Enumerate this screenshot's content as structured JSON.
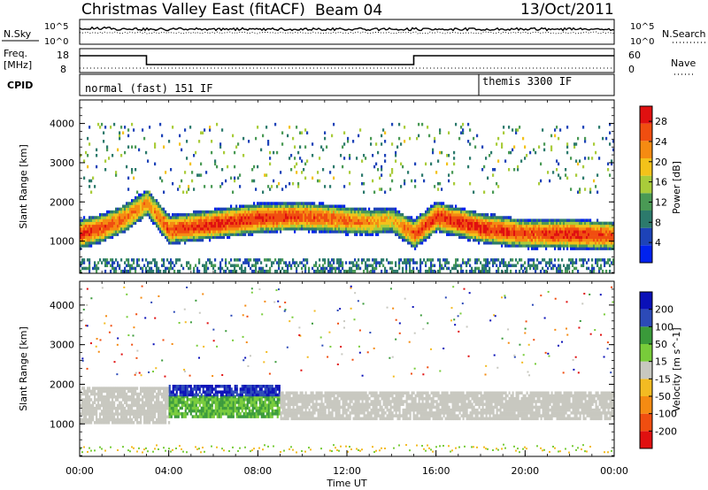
{
  "header": {
    "title": "Christmas Valley East (fitACF)",
    "beam": "Beam 04",
    "date": "13/Oct/2011"
  },
  "panels": {
    "nsky": {
      "label": "N.Sky",
      "ticks": [
        "10^5",
        "10^0"
      ],
      "right_label": "N.Search",
      "right_ticks": [
        "10^5",
        "10^0"
      ]
    },
    "freq": {
      "label_line1": "Freq.",
      "label_line2": "[MHz]",
      "ticks": [
        "18",
        "8"
      ],
      "right_label": "Nave",
      "right_ticks": [
        "60",
        "0"
      ]
    },
    "cpid": {
      "label": "CPID",
      "modes": [
        {
          "text": "normal (fast) 151 IF",
          "start_hour": 0
        },
        {
          "text": "themis 3300 IF",
          "start_hour": 18
        }
      ]
    }
  },
  "colors": {
    "power_scale": [
      "#0022ee",
      "#1d43b8",
      "#2c7a6c",
      "#4a9a55",
      "#a9cc3a",
      "#f3c21a",
      "#f58b12",
      "#f04e10",
      "#e01010"
    ],
    "velocity_scale": [
      "#e01010",
      "#f04e10",
      "#f58b12",
      "#f3bb22",
      "#c8c8c0",
      "#78cc3a",
      "#3a9a3a",
      "#2c4ab8",
      "#0a10b8"
    ]
  },
  "chart_data": [
    {
      "type": "heatmap",
      "name": "power",
      "ylabel": "Slant Range [km]",
      "yticks": [
        1000,
        2000,
        3000,
        4000
      ],
      "ylim": [
        180,
        4600
      ],
      "xlim": [
        0,
        24
      ],
      "colorbar": {
        "label": "Power [dB]",
        "ticks": [
          4,
          8,
          12,
          16,
          20,
          24,
          28
        ],
        "range": [
          0,
          31
        ]
      },
      "bands": [
        {
          "series": "main echo band",
          "x": [
            0,
            1,
            2,
            3,
            4,
            6,
            8,
            10,
            12,
            13,
            14,
            15,
            16,
            18,
            20,
            22,
            24
          ],
          "range_km": [
            1150,
            1300,
            1550,
            1950,
            1250,
            1400,
            1550,
            1600,
            1500,
            1450,
            1500,
            1150,
            1600,
            1300,
            1150,
            1150,
            1100
          ],
          "peak_db": [
            28,
            26,
            24,
            22,
            26,
            28,
            28,
            26,
            24,
            22,
            20,
            26,
            28,
            28,
            26,
            28,
            26
          ]
        }
      ]
    },
    {
      "type": "heatmap",
      "name": "velocity",
      "ylabel": "Slant Range [km]",
      "yticks": [
        1000,
        2000,
        3000,
        4000
      ],
      "ylim": [
        180,
        4600
      ],
      "xlim": [
        0,
        24
      ],
      "colorbar": {
        "label": "Velocity [m s^-1]",
        "ticks": [
          200,
          100,
          50,
          15,
          -15,
          -50,
          -100,
          -200
        ]
      },
      "regions": [
        {
          "series": "ground scatter",
          "x_range": [
            0,
            4
          ],
          "range_km": [
            1000,
            1900
          ],
          "velocity": 0
        },
        {
          "series": "poleward flow",
          "x_range": [
            4,
            9
          ],
          "range_km": [
            1150,
            1700
          ],
          "velocity": 50
        },
        {
          "series": "toward radar",
          "x_range": [
            4,
            9
          ],
          "range_km": [
            1700,
            1950
          ],
          "velocity": 200
        },
        {
          "series": "ground scatter",
          "x_range": [
            9,
            24
          ],
          "range_km": [
            1100,
            1800
          ],
          "velocity": 0
        }
      ]
    }
  ],
  "x_axis": {
    "label": "Time UT",
    "ticks": [
      "00:00",
      "04:00",
      "08:00",
      "12:00",
      "16:00",
      "20:00",
      "00:00"
    ]
  }
}
